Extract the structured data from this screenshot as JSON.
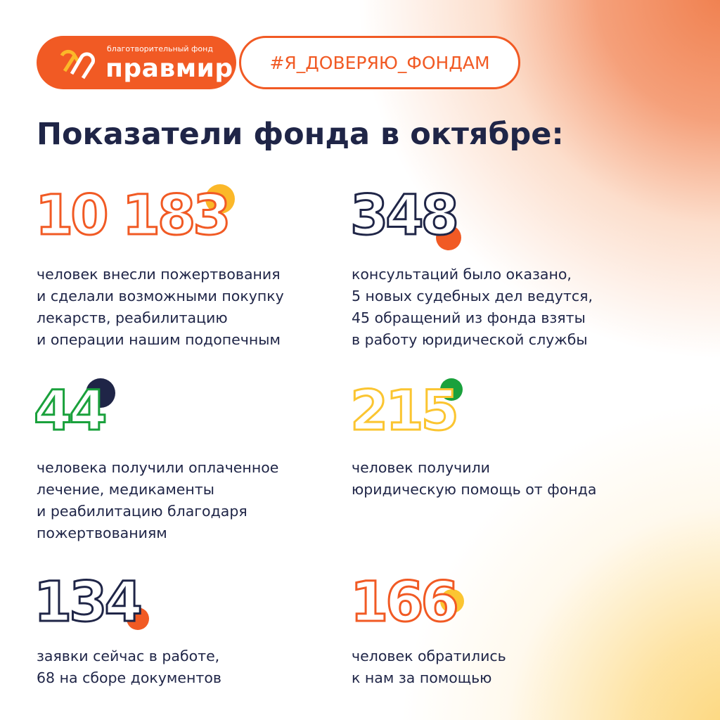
{
  "logo": {
    "subtitle": "благотворительный фонд",
    "name": "правмир"
  },
  "hashtag": "#Я_ДОВЕРЯЮ_ФОНДАМ",
  "title": "Показатели фонда в октябре:",
  "stats": [
    {
      "value": "10 183",
      "color": "#f15a24",
      "dot_color": "#fbb829",
      "lines": [
        "человек внесли пожертвования",
        "и сделали возможными покупку",
        "лекарств, реабилитацию",
        "и операции нашим подопечным"
      ]
    },
    {
      "value": "348",
      "color": "#1f2547",
      "dot_color": "#f15a24",
      "lines": [
        "консультаций было оказано,",
        "5 новых судебных дел ведутся,",
        "45 обращений из фонда взяты",
        "в работу юридической службы"
      ]
    },
    {
      "value": "44",
      "color": "#1aa13c",
      "dot_color": "#1f2547",
      "lines": [
        "человека получили оплаченное",
        "лечение, медикаменты",
        "и реабилитацию благодаря",
        "пожертвованиям"
      ]
    },
    {
      "value": "215",
      "color": "#fbc531",
      "dot_color": "#1aa13c",
      "lines": [
        "человек получили",
        "юридическую помощь от фонда"
      ]
    },
    {
      "value": "134",
      "color": "#1f2547",
      "dot_color": "#f15a24",
      "lines": [
        "заявки сейчас в работе,",
        "68 на сборе документов"
      ]
    },
    {
      "value": "166",
      "color": "#f15a24",
      "dot_color": "#fbc531",
      "lines": [
        "человек обратились",
        "к нам за помощью"
      ]
    }
  ]
}
